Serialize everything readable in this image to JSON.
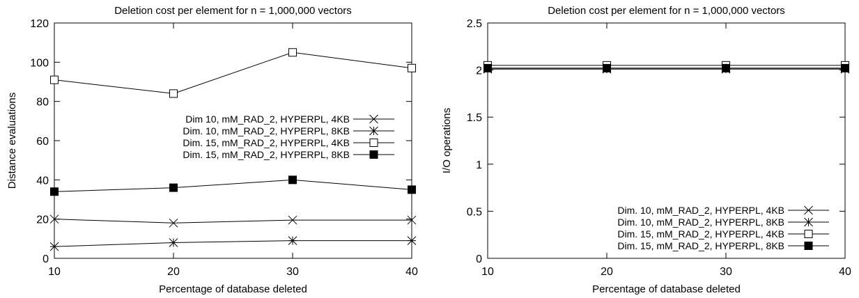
{
  "chart_data": [
    {
      "type": "line",
      "title": "Deletion cost per element for n = 1,000,000 vectors",
      "xlabel": "Percentage of database deleted",
      "ylabel": "Distance evaluations",
      "x": [
        10,
        20,
        30,
        40
      ],
      "xlim": [
        10,
        40
      ],
      "ylim": [
        0,
        120
      ],
      "xticks": [
        "10",
        "20",
        "30",
        "40"
      ],
      "yticks": [
        "0",
        "20",
        "40",
        "60",
        "80",
        "100",
        "120"
      ],
      "grid": false,
      "legend_position": "right-middle",
      "series": [
        {
          "name": "Dim 10, mM_RAD_2, HYPERPL, 4KB",
          "marker": "x",
          "values": [
            20,
            18,
            19.5,
            19.5
          ]
        },
        {
          "name": "Dim. 10, mM_RAD_2, HYPERPL, 8KB",
          "marker": "star",
          "values": [
            6,
            8,
            9,
            9
          ]
        },
        {
          "name": "Dim. 15, mM_RAD_2, HYPERPL, 4KB",
          "marker": "open-square",
          "values": [
            91,
            84,
            105,
            97
          ]
        },
        {
          "name": "Dim. 15, mM_RAD_2, HYPERPL, 8KB",
          "marker": "filled-square",
          "values": [
            34,
            36,
            40,
            35
          ]
        }
      ]
    },
    {
      "type": "line",
      "title": "Deletion cost per element for n = 1,000,000 vectors",
      "xlabel": "Percentage of database deleted",
      "ylabel": "I/O operations",
      "x": [
        10,
        20,
        30,
        40
      ],
      "xlim": [
        10,
        40
      ],
      "ylim": [
        0,
        2.5
      ],
      "xticks": [
        "10",
        "20",
        "30",
        "40"
      ],
      "yticks": [
        "0",
        "0.5",
        "1",
        "1.5",
        "2",
        "2.5"
      ],
      "grid": false,
      "legend_position": "bottom-right",
      "series": [
        {
          "name": "Dim. 10, mM_RAD_2, HYPERPL, 4KB",
          "marker": "x",
          "values": [
            2.02,
            2.02,
            2.02,
            2.02
          ]
        },
        {
          "name": "Dim. 10, mM_RAD_2, HYPERPL, 8KB",
          "marker": "star",
          "values": [
            2.01,
            2.01,
            2.01,
            2.01
          ]
        },
        {
          "name": "Dim. 15, mM_RAD_2, HYPERPL, 4KB",
          "marker": "open-square",
          "values": [
            2.05,
            2.05,
            2.05,
            2.05
          ]
        },
        {
          "name": "Dim. 15, mM_RAD_2, HYPERPL, 8KB",
          "marker": "filled-square",
          "values": [
            2.02,
            2.02,
            2.02,
            2.02
          ]
        }
      ]
    }
  ]
}
